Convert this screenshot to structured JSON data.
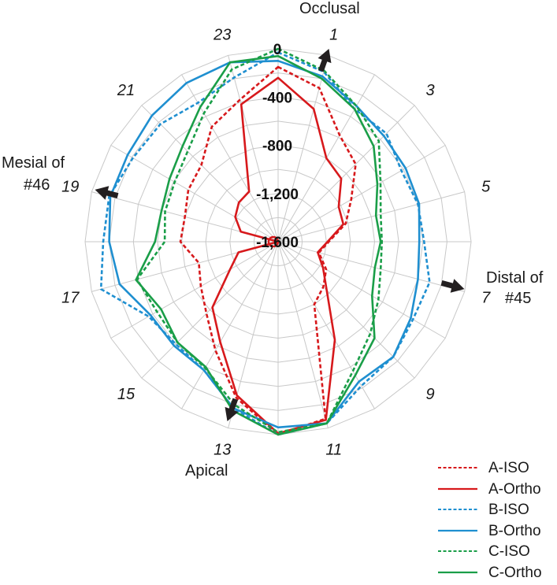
{
  "chart_data": {
    "type": "radar",
    "spokes": [
      "0",
      "1",
      "2",
      "3",
      "4",
      "5",
      "6",
      "7",
      "8",
      "9",
      "10",
      "11",
      "12",
      "13",
      "14",
      "15",
      "16",
      "17",
      "18",
      "19",
      "20",
      "21",
      "22",
      "23"
    ],
    "spoke_labels_shown": [
      "1",
      "3",
      "5",
      "7",
      "9",
      "11",
      "13",
      "15",
      "17",
      "19",
      "21",
      "23"
    ],
    "rlim": [
      -1600,
      0
    ],
    "rticks": [
      0,
      -400,
      -800,
      -1200,
      -1600
    ],
    "rtick_labels": [
      "0",
      "-400",
      "-800",
      "-1,200",
      "-1,600"
    ],
    "grid": true,
    "legend_position": "bottom-right",
    "series": [
      {
        "name": "A-ISO",
        "color": "#d7191c",
        "dash": true,
        "values": [
          -150,
          -280,
          -580,
          -690,
          -900,
          -1020,
          -1180,
          -1250,
          -1140,
          -1070,
          -1000,
          -80,
          0,
          -260,
          -560,
          -760,
          -860,
          -920,
          -790,
          -800,
          -740,
          -700,
          -500,
          -380
        ]
      },
      {
        "name": "A-Ortho",
        "color": "#d7191c",
        "dash": false,
        "values": [
          -240,
          -460,
          -800,
          -860,
          -1020,
          -1040,
          -1190,
          -1260,
          -1170,
          -1030,
          -660,
          -70,
          -10,
          -280,
          -640,
          -830,
          -1140,
          -1260,
          -1600,
          -1280,
          -1190,
          -1140,
          -1120,
          -420
        ]
      },
      {
        "name": "B-ISO",
        "color": "#1f8fd0",
        "dash": true,
        "values": [
          -30,
          -140,
          -330,
          -330,
          -420,
          -400,
          -390,
          -300,
          -310,
          -250,
          -220,
          -40,
          0,
          -170,
          -370,
          -400,
          -360,
          -80,
          -150,
          -150,
          -210,
          -220,
          -270,
          -190
        ]
      },
      {
        "name": "B-Ortho",
        "color": "#1f8fd0",
        "dash": false,
        "values": [
          -100,
          -180,
          -300,
          -360,
          -380,
          -390,
          -430,
          -400,
          -330,
          -250,
          -260,
          -40,
          -60,
          -170,
          -370,
          -380,
          -380,
          -240,
          -200,
          -160,
          -160,
          -120,
          -80,
          -60
        ]
      },
      {
        "name": "C-ISO",
        "color": "#1a9e48",
        "dash": true,
        "values": [
          0,
          -130,
          -300,
          -420,
          -620,
          -720,
          -740,
          -720,
          -640,
          -520,
          -360,
          -40,
          -20,
          -200,
          -390,
          -420,
          -440,
          -390,
          -660,
          -630,
          -610,
          -540,
          -370,
          -120
        ]
      },
      {
        "name": "C-Ortho",
        "color": "#1a9e48",
        "dash": false,
        "values": [
          -60,
          -200,
          -330,
          -480,
          -650,
          -760,
          -750,
          -770,
          -700,
          -470,
          -320,
          -40,
          0,
          -150,
          -400,
          -420,
          -480,
          -380,
          -580,
          -600,
          -560,
          -480,
          -310,
          -60
        ]
      }
    ]
  },
  "labels": {
    "top": "Occlusal",
    "bottom": "Apical",
    "right_line1": "Distal of",
    "right_line2": "#45",
    "left_line1": "Mesial of",
    "left_line2": "#46"
  }
}
